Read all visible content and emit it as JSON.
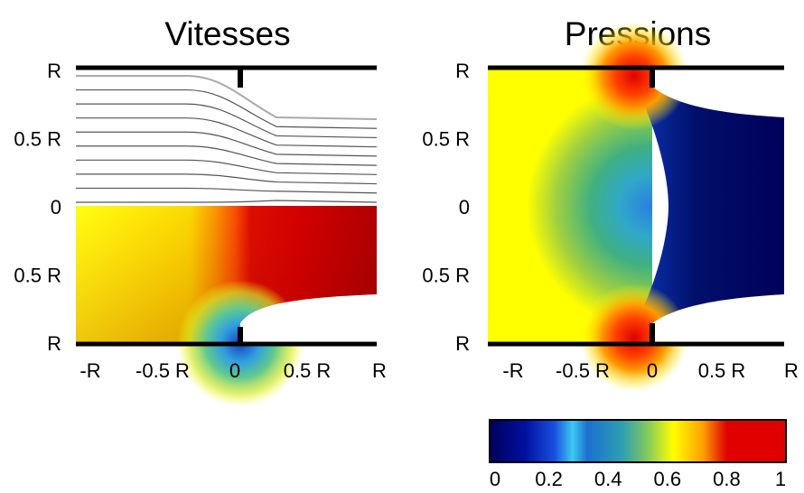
{
  "chart_data": [
    {
      "type": "heatmap",
      "title": "Vitesses",
      "description_quantity": "velocity",
      "y_tick_labels": [
        "R",
        "0.5 R",
        "0",
        "0.5 R",
        "R"
      ],
      "x_tick_labels": [
        "-R",
        "-0.5 R",
        "0",
        "0.5 R",
        "R"
      ],
      "xlim": [
        -1,
        1
      ],
      "ylim": [
        -1,
        1
      ],
      "upper_half": "streamlines",
      "lower_half": "color field",
      "streamline_count": 10
    },
    {
      "type": "heatmap",
      "title": "Pressions",
      "y_tick_labels": [
        "R",
        "0.5 R",
        "0",
        "0.5 R",
        "R"
      ],
      "x_tick_labels": [
        "-R",
        "-0.5 R",
        "0",
        "0.5 R",
        "R"
      ],
      "xlim": [
        -1,
        1
      ],
      "ylim": [
        -1,
        1
      ],
      "colorbar": {
        "range": [
          0,
          1
        ],
        "tick_labels": [
          "0",
          "0.2",
          "0.4",
          "0.6",
          "0.8",
          "1"
        ],
        "colormap": "jet"
      }
    }
  ],
  "colors": {
    "dark_blue": "#00006a",
    "blue": "#1464e8",
    "cyan": "#3cc8f0",
    "green": "#7cc850",
    "yellow": "#ffff00",
    "orange": "#ff8c00",
    "red": "#e00000",
    "dark_red": "#8a0000"
  }
}
